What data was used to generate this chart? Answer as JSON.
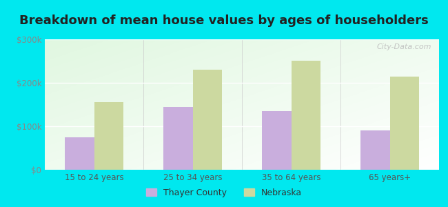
{
  "title": "Breakdown of mean house values by ages of householders",
  "categories": [
    "15 to 24 years",
    "25 to 34 years",
    "35 to 64 years",
    "65 years+"
  ],
  "thayer_county": [
    75000,
    145000,
    135000,
    90000
  ],
  "nebraska": [
    155000,
    230000,
    250000,
    215000
  ],
  "thayer_color": "#c9aedd",
  "nebraska_color": "#ccd9a0",
  "background_outer": "#00e8ef",
  "ylim": [
    0,
    300000
  ],
  "yticks": [
    0,
    100000,
    200000,
    300000
  ],
  "ytick_labels": [
    "$0",
    "$100k",
    "$200k",
    "$300k"
  ],
  "legend_labels": [
    "Thayer County",
    "Nebraska"
  ],
  "bar_width": 0.3,
  "title_fontsize": 13,
  "tick_fontsize": 8.5,
  "legend_fontsize": 9,
  "watermark": "City-Data.com"
}
